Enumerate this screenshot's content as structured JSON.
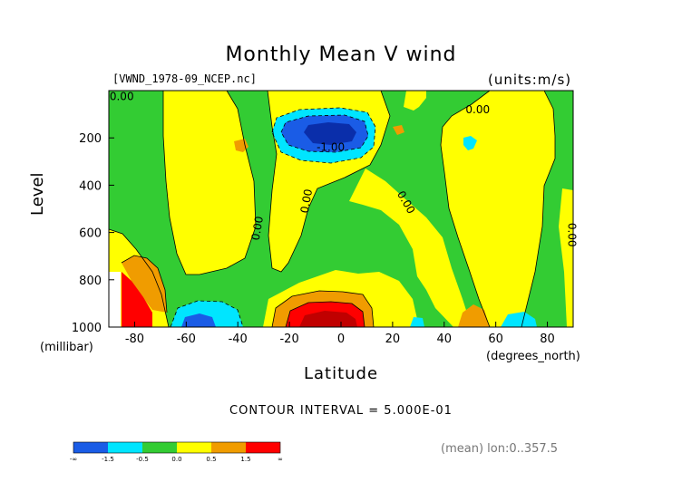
{
  "chart_data": {
    "type": "contour",
    "title": "Monthly Mean V wind",
    "file_label": "[VWND_1978-09_NCEP.nc]",
    "units_label": "(units:m/s)",
    "xlabel": "Latitude",
    "x_unit": "(degrees_north)",
    "ylabel": "Level",
    "y_unit": "(millibar)",
    "x_range": [
      -90,
      90
    ],
    "y_range": [
      0,
      1000
    ],
    "x_ticks": [
      {
        "value": -80,
        "label": "-80"
      },
      {
        "value": -60,
        "label": "-60"
      },
      {
        "value": -40,
        "label": "-40"
      },
      {
        "value": -20,
        "label": "-20"
      },
      {
        "value": 0,
        "label": "0"
      },
      {
        "value": 20,
        "label": "20"
      },
      {
        "value": 40,
        "label": "40"
      },
      {
        "value": 60,
        "label": "60"
      },
      {
        "value": 80,
        "label": "80"
      }
    ],
    "y_ticks": [
      {
        "value": 200,
        "label": "200"
      },
      {
        "value": 400,
        "label": "400"
      },
      {
        "value": 600,
        "label": "600"
      },
      {
        "value": 800,
        "label": "800"
      },
      {
        "value": 1000,
        "label": "1000"
      }
    ],
    "contour_interval": "CONTOUR INTERVAL = 5.000E-01",
    "mean_label": "(mean) lon:0..357.5",
    "contour_labels": [
      {
        "text": "0.00",
        "lat": -85,
        "lev": 40,
        "rotate": 0
      },
      {
        "text": "0.00",
        "lat": 53,
        "lev": 95,
        "rotate": 0
      },
      {
        "text": "-1.00",
        "lat": -4,
        "lev": 255,
        "rotate": 0
      },
      {
        "text": "0.00",
        "lat": -12,
        "lev": 470,
        "rotate": -80
      },
      {
        "text": "0.00",
        "lat": -31,
        "lev": 585,
        "rotate": -80
      },
      {
        "text": "0.00",
        "lat": 24,
        "lev": 480,
        "rotate": 60
      },
      {
        "text": "0.00",
        "lat": 88,
        "lev": 610,
        "rotate": 90
      }
    ],
    "legend": {
      "colors": [
        "#1a5ce6",
        "#00e5ff",
        "#33cc33",
        "#ffff00",
        "#f09c00",
        "#ff0000"
      ],
      "labels": [
        "-∞",
        "-1.5",
        "-0.5",
        "0.0",
        "0.5",
        "1.5",
        "∞"
      ]
    },
    "fill_colors": {
      "strong_negative": "#1a5ce6",
      "negative": "#00e5ff",
      "near_zero_negative": "#33cc33",
      "near_zero_positive": "#ffff00",
      "positive": "#f09c00",
      "strong_positive": "#ff0000",
      "darkest_negative": "#0a2eaa",
      "darkest_positive": "#c00000"
    }
  }
}
